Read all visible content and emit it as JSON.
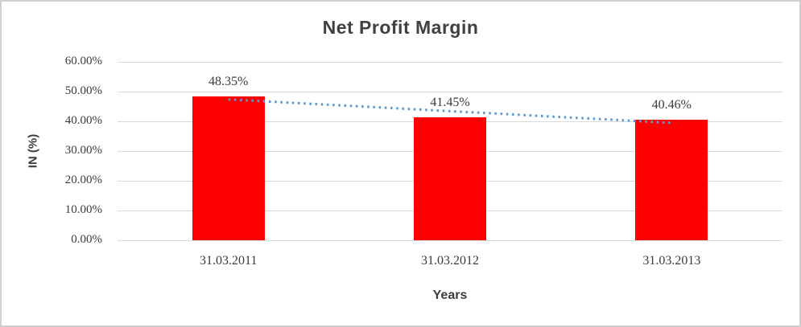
{
  "chart_data": {
    "type": "bar",
    "title": "Net Profit Margin",
    "xlabel": "Years",
    "ylabel": "IN (%)",
    "categories": [
      "31.03.2011",
      "31.03.2012",
      "31.03.2013"
    ],
    "values": [
      48.35,
      41.45,
      40.46
    ],
    "labels": [
      "48.35%",
      "41.45%",
      "40.46%"
    ],
    "yticks": [
      "60.00%",
      "50.00%",
      "40.00%",
      "30.00%",
      "20.00%",
      "10.00%",
      "0.00%"
    ],
    "ylim": [
      0,
      60
    ],
    "ytick_step": 10,
    "grid": "horizontal",
    "legend": "none",
    "bar_color": "#ff0000",
    "trendline": {
      "type": "linear",
      "style": "dotted",
      "color": "#5b9bd5"
    }
  }
}
